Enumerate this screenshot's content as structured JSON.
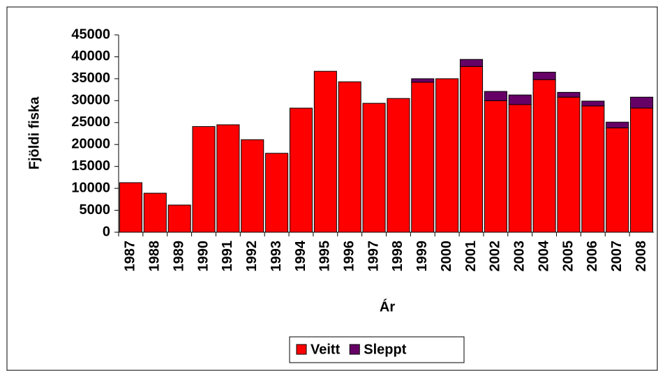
{
  "chart_data": {
    "type": "stacked-bar",
    "y_label": "Fjöldi fiska",
    "x_label": "Ár",
    "categories": [
      "1987",
      "1988",
      "1989",
      "1990",
      "1991",
      "1992",
      "1993",
      "1994",
      "1995",
      "1996",
      "1997",
      "1998",
      "1999",
      "2000",
      "2001",
      "2002",
      "2003",
      "2004",
      "2005",
      "2006",
      "2007",
      "2008"
    ],
    "series": [
      {
        "name": "Veitt",
        "color": "#ff0000",
        "values": [
          11300,
          8900,
          6200,
          24100,
          24500,
          21100,
          18000,
          28300,
          36700,
          34300,
          29400,
          30500,
          34200,
          35000,
          37800,
          30000,
          29100,
          34800,
          30800,
          28800,
          23800,
          28300
        ]
      },
      {
        "name": "Sleppt",
        "color": "#660066",
        "values": [
          0,
          0,
          0,
          0,
          0,
          0,
          0,
          0,
          0,
          0,
          0,
          0,
          800,
          0,
          1600,
          2100,
          2200,
          1700,
          1100,
          1100,
          1300,
          2500
        ]
      }
    ],
    "ylim": [
      0,
      45000
    ],
    "yticks": [
      0,
      5000,
      10000,
      15000,
      20000,
      25000,
      30000,
      35000,
      40000,
      45000
    ],
    "legend": "bottom"
  }
}
